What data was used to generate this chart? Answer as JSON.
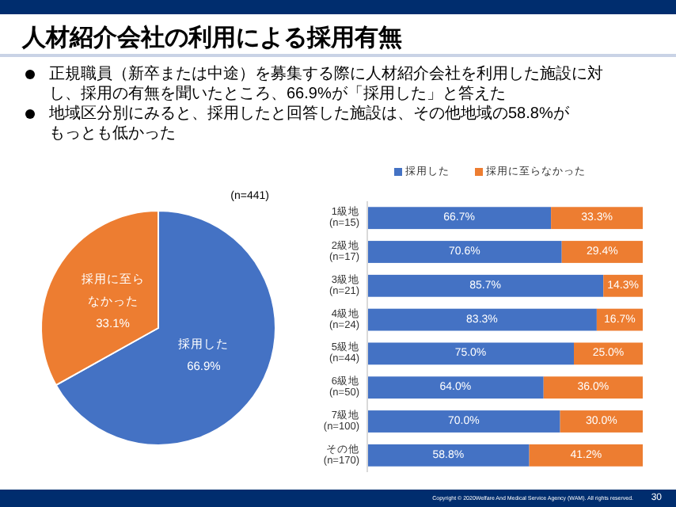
{
  "chart_data": [
    {
      "type": "pie",
      "title": "人材紹介会社の利用による採用有無",
      "annotations": [
        "正規職員（新卒または中途）を募集する際に人材紹介会社を利用した施設に対し、採用の有無を聞いたところ、66.9%が「採用した」と答えた",
        "地域区分別にみると、採用したと回答した施設は、その他地域の58.8%がもっとも低かった",
        "(n=441)"
      ],
      "categories": [
        "採用した",
        "採用に至らなかった"
      ],
      "values": [
        66.9,
        33.1
      ],
      "colors": [
        "#4472c4",
        "#ed7d31"
      ],
      "value_labels": [
        "66.9%",
        "33.1%"
      ],
      "legend": false
    },
    {
      "type": "bar",
      "orientation": "horizontal",
      "stacked": true,
      "legend": "top",
      "tick_labels": "y",
      "xlim": [
        0,
        100
      ],
      "categories": [
        "1級地\n(n=15)",
        "2級地\n(n=17)",
        "3級地\n(n=21)",
        "4級地\n(n=24)",
        "5級地\n(n=44)",
        "6級地\n(n=50)",
        "7級地\n(n=100)",
        "その他\n(n=170)"
      ],
      "series": [
        {
          "name": "採用した",
          "color": "#4472c4",
          "values": [
            66.7,
            70.6,
            85.7,
            83.3,
            75.0,
            64.0,
            70.0,
            58.8
          ],
          "value_labels": [
            "66.7%",
            "70.6%",
            "85.7%",
            "83.3%",
            "75.0%",
            "64.0%",
            "70.0%",
            "58.8%"
          ]
        },
        {
          "name": "採用に至らなかった",
          "color": "#ed7d31",
          "values": [
            33.3,
            29.4,
            14.3,
            16.7,
            25.0,
            36.0,
            30.0,
            41.2
          ],
          "value_labels": [
            "33.3%",
            "29.4%",
            "14.3%",
            "16.7%",
            "25.0%",
            "36.0%",
            "30.0%",
            "41.2%"
          ]
        }
      ],
      "annotations": [
        "Copyright © 2020Welfare And Medical Service Agency (WAM). All rights reserved.",
        "30"
      ]
    }
  ]
}
